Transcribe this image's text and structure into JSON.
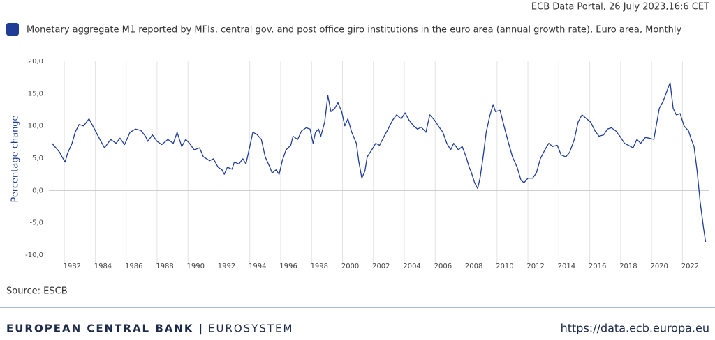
{
  "header": {
    "stamp": "ECB Data Portal, 26 July 2023,16:6 CET"
  },
  "chart_data": {
    "type": "line",
    "ylabel": "Percentage change",
    "source": "Source: ESCB",
    "xlim": [
      1981,
      2023.7
    ],
    "xticks": [
      1982,
      1984,
      1986,
      1988,
      1990,
      1992,
      1994,
      1996,
      1998,
      2000,
      2002,
      2004,
      2006,
      2008,
      2010,
      2012,
      2014,
      2016,
      2018,
      2020,
      2022
    ],
    "ylim": [
      -10,
      20
    ],
    "yticks": [
      {
        "value": -10,
        "label": "-10,0"
      },
      {
        "value": -5,
        "label": "-5,0"
      },
      {
        "value": 0,
        "label": "0,0"
      },
      {
        "value": 5,
        "label": "5,0"
      },
      {
        "value": 10,
        "label": "10,0"
      },
      {
        "value": 15,
        "label": "15,0"
      },
      {
        "value": 20,
        "label": "20,0"
      }
    ],
    "xgrid": true,
    "x": [
      1981.2,
      1981.45,
      1981.7,
      1981.85,
      1982.05,
      1982.2,
      1982.5,
      1982.7,
      1982.95,
      1983.25,
      1983.6,
      1983.95,
      1984.3,
      1984.6,
      1985.0,
      1985.35,
      1985.6,
      1985.9,
      1986.25,
      1986.6,
      1986.95,
      1987.25,
      1987.4,
      1987.7,
      1988.0,
      1988.3,
      1988.7,
      1989.05,
      1989.3,
      1989.6,
      1989.85,
      1990.1,
      1990.4,
      1990.75,
      1991.0,
      1991.4,
      1991.65,
      1991.95,
      1992.2,
      1992.35,
      1992.55,
      1992.85,
      1993.0,
      1993.3,
      1993.55,
      1993.75,
      1993.9,
      1994.2,
      1994.45,
      1994.75,
      1995.0,
      1995.3,
      1995.45,
      1995.7,
      1995.9,
      1996.1,
      1996.35,
      1996.65,
      1996.8,
      1997.1,
      1997.35,
      1997.65,
      1997.9,
      1998.1,
      1998.25,
      1998.45,
      1998.6,
      1998.85,
      1999.05,
      1999.25,
      1999.5,
      1999.7,
      1999.95,
      2000.15,
      2000.35,
      2000.6,
      2000.9,
      2001.05,
      2001.25,
      2001.45,
      2001.6,
      2001.9,
      2002.15,
      2002.4,
      2002.7,
      2002.95,
      2003.25,
      2003.5,
      2003.8,
      2004.05,
      2004.3,
      2004.6,
      2004.85,
      2005.1,
      2005.4,
      2005.65,
      2005.95,
      2006.2,
      2006.5,
      2006.75,
      2007.0,
      2007.2,
      2007.5,
      2007.75,
      2008.0,
      2008.2,
      2008.35,
      2008.55,
      2008.75,
      2008.9,
      2009.1,
      2009.3,
      2009.55,
      2009.75,
      2009.9,
      2010.2,
      2010.45,
      2010.75,
      2011.0,
      2011.3,
      2011.55,
      2011.75,
      2012.0,
      2012.3,
      2012.55,
      2012.8,
      2013.1,
      2013.35,
      2013.6,
      2013.9,
      2014.15,
      2014.45,
      2014.7,
      2015.0,
      2015.25,
      2015.5,
      2015.8,
      2016.05,
      2016.35,
      2016.6,
      2016.9,
      2017.15,
      2017.4,
      2017.7,
      2017.95,
      2018.25,
      2018.5,
      2018.8,
      2019.05,
      2019.3,
      2019.6,
      2019.85,
      2020.15,
      2020.3,
      2020.5,
      2020.75,
      2021.0,
      2021.2,
      2021.4,
      2021.6,
      2021.85,
      2022.1,
      2022.4,
      2022.55,
      2022.75,
      2022.95,
      2023.15,
      2023.35,
      2023.5
    ],
    "series": [
      {
        "name": "Monetary aggregate M1 reported by MFIs, central gov. and post office giro institutions in the euro area (annual growth rate), Euro area, Monthly",
        "color": "#1f3d97",
        "values": [
          7.3,
          6.6,
          5.9,
          5.2,
          4.4,
          5.7,
          7.3,
          9.0,
          10.2,
          10.0,
          11.1,
          9.5,
          7.9,
          6.6,
          7.9,
          7.3,
          8.1,
          7.1,
          9.0,
          9.5,
          9.3,
          8.4,
          7.6,
          8.6,
          7.6,
          7.1,
          7.9,
          7.3,
          9.0,
          6.8,
          7.9,
          7.3,
          6.3,
          6.6,
          5.2,
          4.6,
          4.9,
          3.6,
          3.2,
          2.5,
          3.6,
          3.3,
          4.4,
          4.1,
          4.9,
          4.1,
          5.7,
          9.0,
          8.7,
          7.9,
          5.2,
          3.6,
          2.7,
          3.2,
          2.5,
          4.6,
          6.3,
          7.0,
          8.4,
          7.9,
          9.2,
          9.7,
          9.5,
          7.3,
          9.0,
          9.5,
          8.4,
          10.6,
          14.7,
          12.2,
          12.7,
          13.6,
          12.2,
          10.0,
          11.1,
          9.0,
          7.3,
          4.6,
          1.9,
          3.0,
          5.2,
          6.3,
          7.3,
          7.0,
          8.4,
          9.5,
          10.9,
          11.7,
          11.1,
          12.0,
          10.9,
          10.0,
          9.5,
          9.8,
          9.0,
          11.7,
          10.9,
          10.0,
          9.0,
          7.3,
          6.3,
          7.3,
          6.3,
          6.8,
          5.2,
          3.6,
          2.7,
          1.2,
          0.3,
          1.9,
          5.2,
          9.0,
          11.7,
          13.3,
          12.2,
          12.4,
          10.0,
          7.3,
          5.2,
          3.6,
          1.6,
          1.2,
          1.9,
          1.9,
          2.7,
          4.9,
          6.3,
          7.3,
          6.8,
          7.0,
          5.5,
          5.2,
          5.9,
          7.9,
          10.6,
          11.7,
          11.1,
          10.6,
          9.2,
          8.4,
          8.6,
          9.5,
          9.7,
          9.2,
          8.4,
          7.3,
          7.0,
          6.6,
          7.9,
          7.3,
          8.2,
          8.1,
          7.9,
          10.0,
          12.7,
          13.8,
          15.4,
          16.7,
          12.7,
          11.7,
          11.9,
          10.0,
          9.2,
          8.1,
          6.8,
          3.0,
          -1.8,
          -5.6,
          -8.0
        ]
      }
    ]
  },
  "footer": {
    "bank": "EUROPEAN CENTRAL BANK",
    "separator": "|",
    "system": "EUROSYSTEM",
    "url": "https://data.ecb.europa.eu"
  }
}
